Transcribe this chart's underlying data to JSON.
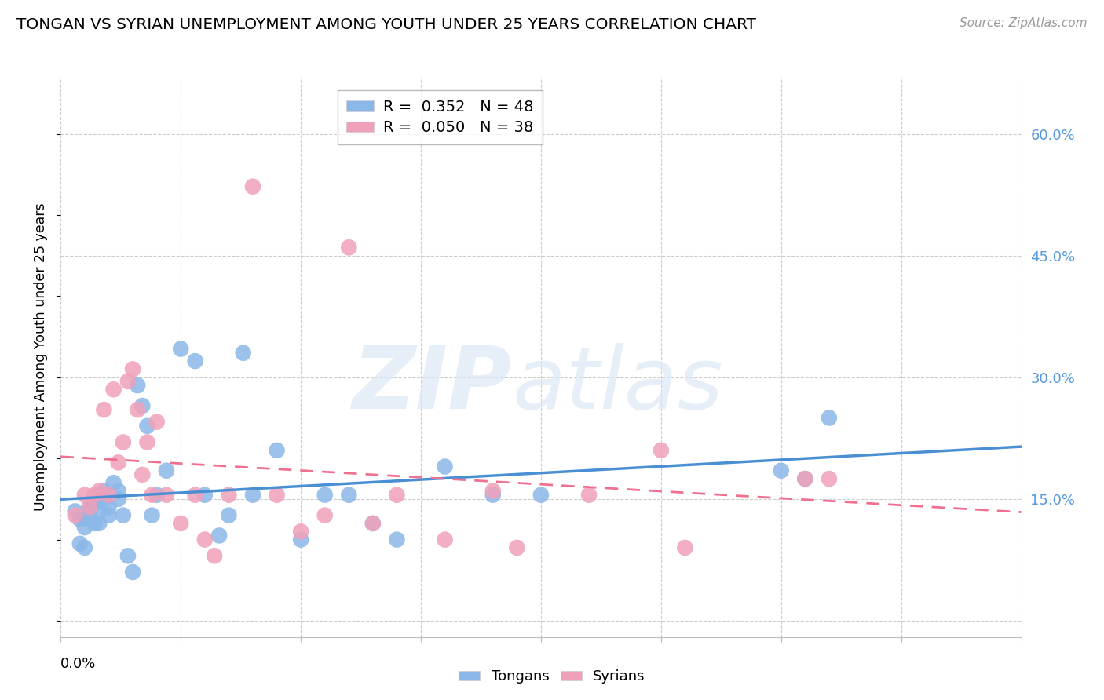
{
  "title": "TONGAN VS SYRIAN UNEMPLOYMENT AMONG YOUTH UNDER 25 YEARS CORRELATION CHART",
  "source": "Source: ZipAtlas.com",
  "ylabel": "Unemployment Among Youth under 25 years",
  "y_ticks": [
    0.0,
    0.15,
    0.3,
    0.45,
    0.6
  ],
  "y_tick_labels": [
    "",
    "15.0%",
    "30.0%",
    "45.0%",
    "60.0%"
  ],
  "x_lim": [
    0.0,
    0.2
  ],
  "y_lim": [
    -0.02,
    0.67
  ],
  "legend_tongan_r": "R = ",
  "legend_tongan_rv": " 0.352",
  "legend_tongan_n": "  N = ",
  "legend_tongan_nv": "48",
  "legend_syrian_r": "R = ",
  "legend_syrian_rv": " 0.050",
  "legend_syrian_n": "  N = ",
  "legend_syrian_nv": "38",
  "tongan_color": "#8BB8E8",
  "syrian_color": "#F0A0B8",
  "trendline_tongan_color": "#4A8FD4",
  "trendline_syrian_color": "#F07090",
  "tick_color": "#5599DD",
  "tongan_x": [
    0.003,
    0.004,
    0.004,
    0.005,
    0.005,
    0.005,
    0.006,
    0.006,
    0.007,
    0.007,
    0.008,
    0.008,
    0.008,
    0.009,
    0.009,
    0.01,
    0.01,
    0.011,
    0.012,
    0.012,
    0.013,
    0.014,
    0.015,
    0.016,
    0.017,
    0.018,
    0.019,
    0.02,
    0.022,
    0.025,
    0.028,
    0.03,
    0.033,
    0.035,
    0.038,
    0.04,
    0.045,
    0.05,
    0.055,
    0.06,
    0.065,
    0.07,
    0.08,
    0.09,
    0.1,
    0.15,
    0.155,
    0.16
  ],
  "tongan_y": [
    0.135,
    0.125,
    0.095,
    0.09,
    0.115,
    0.125,
    0.14,
    0.13,
    0.12,
    0.145,
    0.155,
    0.135,
    0.12,
    0.16,
    0.15,
    0.14,
    0.13,
    0.17,
    0.16,
    0.15,
    0.13,
    0.08,
    0.06,
    0.29,
    0.265,
    0.24,
    0.13,
    0.155,
    0.185,
    0.335,
    0.32,
    0.155,
    0.105,
    0.13,
    0.33,
    0.155,
    0.21,
    0.1,
    0.155,
    0.155,
    0.12,
    0.1,
    0.19,
    0.155,
    0.155,
    0.185,
    0.175,
    0.25
  ],
  "syrian_x": [
    0.003,
    0.005,
    0.006,
    0.007,
    0.008,
    0.009,
    0.01,
    0.011,
    0.012,
    0.013,
    0.014,
    0.015,
    0.016,
    0.017,
    0.018,
    0.019,
    0.02,
    0.022,
    0.025,
    0.028,
    0.03,
    0.032,
    0.035,
    0.04,
    0.045,
    0.05,
    0.055,
    0.06,
    0.065,
    0.07,
    0.08,
    0.09,
    0.095,
    0.11,
    0.125,
    0.13,
    0.155,
    0.16
  ],
  "syrian_y": [
    0.13,
    0.155,
    0.14,
    0.155,
    0.16,
    0.26,
    0.155,
    0.285,
    0.195,
    0.22,
    0.295,
    0.31,
    0.26,
    0.18,
    0.22,
    0.155,
    0.245,
    0.155,
    0.12,
    0.155,
    0.1,
    0.08,
    0.155,
    0.535,
    0.155,
    0.11,
    0.13,
    0.46,
    0.12,
    0.155,
    0.1,
    0.16,
    0.09,
    0.155,
    0.21,
    0.09,
    0.175,
    0.175
  ]
}
